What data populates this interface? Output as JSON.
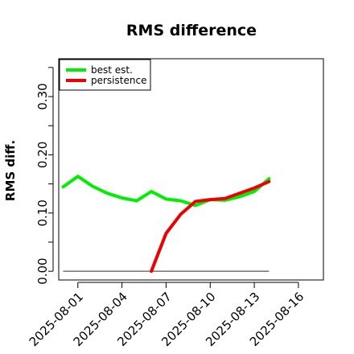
{
  "chart_data": {
    "type": "line",
    "title": "RMS difference",
    "xlabel": "",
    "ylabel": "RMS diff.",
    "x_ticks": [
      "2025-08-01",
      "2025-08-04",
      "2025-08-07",
      "2025-08-10",
      "2025-08-13",
      "2025-08-16"
    ],
    "x_tick_values": [
      1,
      4,
      7,
      10,
      13,
      16
    ],
    "xlim": [
      -0.3,
      17.7
    ],
    "y_ticks": [
      "0.00",
      "0.10",
      "0.20",
      "0.30"
    ],
    "y_tick_values": [
      0.0,
      0.1,
      0.2,
      0.3
    ],
    "ylim": [
      -0.015,
      0.365
    ],
    "grid": false,
    "legend_position": "top-left",
    "baseline": {
      "x": [
        0,
        14
      ],
      "y": [
        0,
        0
      ],
      "color": "#555555"
    },
    "series": [
      {
        "name": "best est.",
        "color": "#00ee00",
        "x": [
          0,
          1,
          2,
          3,
          4,
          5,
          6,
          7,
          8,
          9,
          10,
          11,
          12,
          13,
          14
        ],
        "y": [
          0.145,
          0.163,
          0.146,
          0.134,
          0.126,
          0.121,
          0.137,
          0.124,
          0.121,
          0.113,
          0.123,
          0.122,
          0.128,
          0.137,
          0.159
        ]
      },
      {
        "name": "persistence",
        "color": "#ee0000",
        "x": [
          6,
          7,
          8,
          9,
          10,
          11,
          12,
          13,
          14
        ],
        "y": [
          0.0,
          0.065,
          0.098,
          0.12,
          0.123,
          0.125,
          0.134,
          0.143,
          0.154
        ]
      }
    ]
  }
}
